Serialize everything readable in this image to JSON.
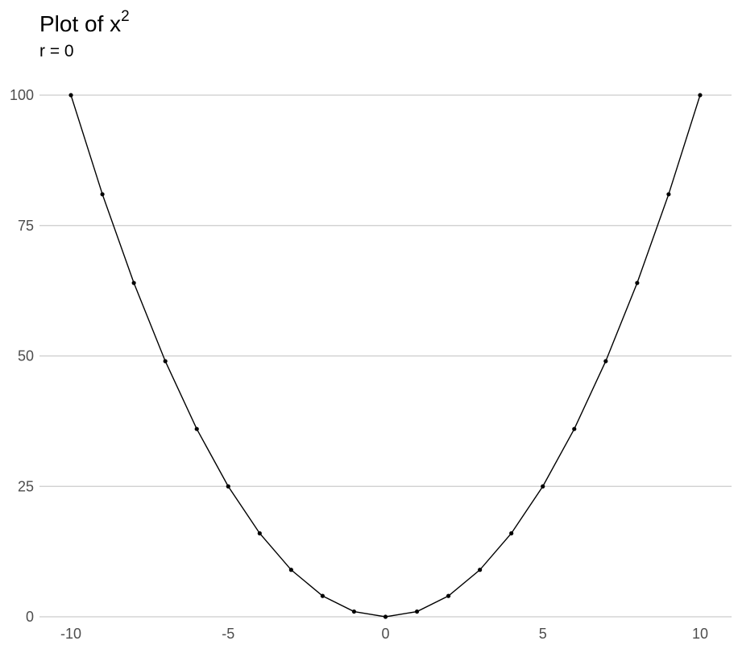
{
  "chart_data": {
    "type": "line",
    "title": "Plot of x",
    "title_superscript": "2",
    "subtitle": "r = 0",
    "xlabel": "",
    "ylabel": "",
    "xlim": [
      -11,
      11
    ],
    "ylim": [
      0,
      100
    ],
    "x_ticks": [
      -10,
      -5,
      0,
      5,
      10
    ],
    "y_ticks": [
      0,
      25,
      50,
      75,
      100
    ],
    "grid": "horizontal major",
    "markers": true,
    "line_color": "#000000",
    "grid_color": "#cccccc",
    "series": [
      {
        "x": [
          -10,
          -9,
          -8,
          -7,
          -6,
          -5,
          -4,
          -3,
          -2,
          -1,
          0,
          1,
          2,
          3,
          4,
          5,
          6,
          7,
          8,
          9,
          10
        ],
        "values": [
          100,
          81,
          64,
          49,
          36,
          25,
          16,
          9,
          4,
          1,
          0,
          1,
          4,
          9,
          16,
          25,
          36,
          49,
          64,
          81,
          100
        ]
      }
    ]
  }
}
